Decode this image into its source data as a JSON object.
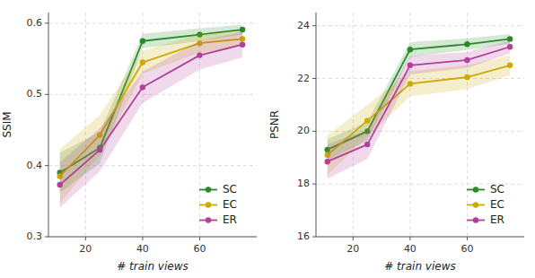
{
  "chart_data": [
    {
      "type": "line",
      "x": [
        11,
        25,
        40,
        60,
        75
      ],
      "xlim": [
        7,
        80
      ],
      "xticks": [
        20,
        40,
        60
      ],
      "ylim": [
        0.3,
        0.615
      ],
      "yticks": [
        0.3,
        0.4,
        0.5,
        0.6
      ],
      "xlabel": "# train views",
      "ylabel": "SSIM",
      "grid": true,
      "legend": "lower right",
      "marker": "o",
      "series": [
        {
          "name": "SC",
          "color": "#2a8a2a",
          "values": [
            0.39,
            0.425,
            0.575,
            0.584,
            0.591
          ],
          "errors": [
            0.028,
            0.022,
            0.01,
            0.009,
            0.007
          ]
        },
        {
          "name": "EC",
          "color": "#ccaa00",
          "values": [
            0.385,
            0.443,
            0.545,
            0.572,
            0.578
          ],
          "errors": [
            0.038,
            0.028,
            0.016,
            0.013,
            0.01
          ]
        },
        {
          "name": "ER",
          "color": "#b0409a",
          "values": [
            0.373,
            0.422,
            0.51,
            0.555,
            0.57
          ],
          "errors": [
            0.032,
            0.03,
            0.022,
            0.02,
            0.018
          ]
        }
      ]
    },
    {
      "type": "line",
      "x": [
        11,
        25,
        40,
        60,
        75
      ],
      "xlim": [
        7,
        80
      ],
      "xticks": [
        20,
        40,
        60
      ],
      "ylim": [
        16,
        24.5
      ],
      "yticks": [
        16,
        18,
        20,
        22,
        24
      ],
      "xlabel": "# train views",
      "ylabel": "PSNR",
      "grid": true,
      "legend": "lower right",
      "marker": "o",
      "series": [
        {
          "name": "SC",
          "color": "#2a8a2a",
          "values": [
            19.3,
            20.0,
            23.1,
            23.3,
            23.5
          ],
          "errors": [
            0.4,
            0.35,
            0.28,
            0.22,
            0.18
          ]
        },
        {
          "name": "EC",
          "color": "#ccaa00",
          "values": [
            19.1,
            20.4,
            21.8,
            22.05,
            22.5
          ],
          "errors": [
            0.75,
            0.6,
            0.48,
            0.45,
            0.38
          ]
        },
        {
          "name": "ER",
          "color": "#b0409a",
          "values": [
            18.85,
            19.5,
            22.5,
            22.7,
            23.2
          ],
          "errors": [
            0.65,
            0.55,
            0.35,
            0.3,
            0.25
          ]
        }
      ]
    }
  ]
}
